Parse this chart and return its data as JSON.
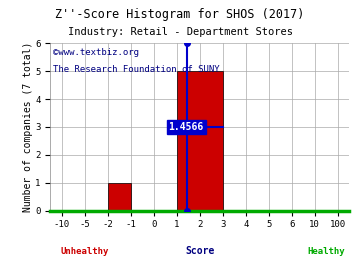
{
  "title": "Z''-Score Histogram for SHOS (2017)",
  "subtitle": "Industry: Retail - Department Stores",
  "watermark1": "©www.textbiz.org",
  "watermark2": "The Research Foundation of SUNY",
  "xlabel": "Score",
  "ylabel": "Number of companies (7 total)",
  "x_tick_labels": [
    "-10",
    "-5",
    "-2",
    "-1",
    "0",
    "1",
    "2",
    "3",
    "4",
    "5",
    "6",
    "10",
    "100"
  ],
  "bar_color": "#cc0000",
  "bar_edge_color": "#000000",
  "ylim": [
    0,
    6
  ],
  "y_ticks": [
    0,
    1,
    2,
    3,
    4,
    5,
    6
  ],
  "marker_label": "1.4566",
  "marker_color": "#0000cc",
  "unhealthy_label": "Unhealthy",
  "healthy_label": "Healthy",
  "unhealthy_color": "#cc0000",
  "healthy_color": "#00aa00",
  "axis_line_color": "#00aa00",
  "background_color": "#ffffff",
  "title_fontsize": 8.5,
  "watermark_fontsize": 6.5,
  "tick_fontsize": 6.5,
  "label_fontsize": 7
}
